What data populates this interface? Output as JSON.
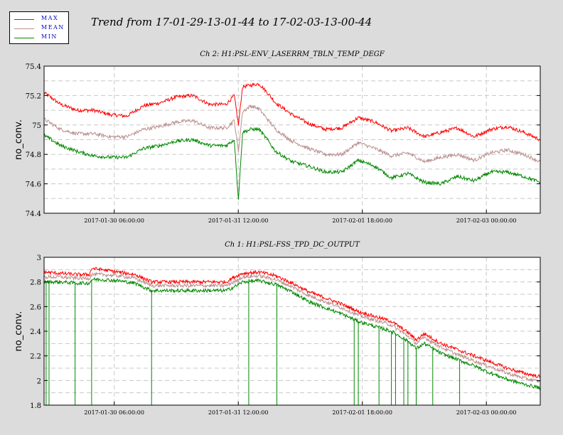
{
  "title": "Trend from 17-01-29-13-01-44 to 17-02-03-13-00-44",
  "legend": {
    "entries": [
      {
        "label": "MAX",
        "color": "#ff0000"
      },
      {
        "label": "MEAN",
        "color": "#bc8f8f"
      },
      {
        "label": "MIN",
        "color": "#008800"
      }
    ]
  },
  "chart_data": [
    {
      "type": "line",
      "title": "Ch 2: H1:PSL-ENV_LASERRM_TBLN_TEMP_DEGF",
      "ylabel": "no_conv.",
      "xlabel": "",
      "ylim": [
        74.4,
        75.4
      ],
      "yticks": [
        74.4,
        74.6,
        74.8,
        75,
        75.2,
        75.4
      ],
      "ytick_labels": [
        "74.4",
        "74.6",
        "74.8",
        "75",
        "75.2",
        "75.4"
      ],
      "xlim_hours": [
        0,
        120
      ],
      "xticks_hours": [
        16.97,
        46.97,
        76.97,
        106.97
      ],
      "xtick_labels": [
        "2017-01-30 06:00:00",
        "2017-01-31 12:00:00",
        "2017-02-01 18:00:00",
        "2017-02-03 00:00:00"
      ],
      "grid": true,
      "series": [
        {
          "name": "MAX",
          "color": "#ff0000",
          "x": [
            0,
            4,
            8,
            12,
            16,
            20,
            24,
            28,
            32,
            36,
            40,
            44,
            46,
            47,
            48,
            50,
            52,
            54,
            56,
            60,
            64,
            68,
            72,
            76,
            80,
            84,
            88,
            92,
            96,
            100,
            104,
            108,
            112,
            116,
            120
          ],
          "y": [
            75.22,
            75.14,
            75.1,
            75.1,
            75.07,
            75.06,
            75.13,
            75.15,
            75.19,
            75.2,
            75.14,
            75.14,
            75.2,
            75.0,
            75.26,
            75.27,
            75.28,
            75.22,
            75.15,
            75.07,
            75.01,
            74.97,
            74.98,
            75.05,
            75.02,
            74.96,
            74.98,
            74.92,
            74.95,
            74.98,
            74.92,
            74.97,
            74.99,
            74.95,
            74.9
          ]
        },
        {
          "name": "MEAN",
          "color": "#bc8f8f",
          "x": [
            0,
            4,
            8,
            12,
            16,
            20,
            24,
            28,
            32,
            36,
            40,
            44,
            46,
            47,
            48,
            50,
            52,
            54,
            56,
            60,
            64,
            68,
            72,
            76,
            80,
            84,
            88,
            92,
            96,
            100,
            104,
            108,
            112,
            116,
            120
          ],
          "y": [
            75.04,
            74.97,
            74.94,
            74.94,
            74.92,
            74.92,
            74.97,
            74.99,
            75.02,
            75.03,
            74.98,
            74.98,
            75.03,
            74.82,
            75.09,
            75.13,
            75.11,
            75.04,
            74.97,
            74.89,
            74.84,
            74.8,
            74.8,
            74.88,
            74.84,
            74.79,
            74.81,
            74.75,
            74.78,
            74.8,
            74.76,
            74.81,
            74.83,
            74.8,
            74.75
          ]
        },
        {
          "name": "MIN",
          "color": "#008800",
          "x": [
            0,
            4,
            8,
            12,
            16,
            20,
            24,
            28,
            32,
            36,
            40,
            44,
            46,
            47,
            48,
            50,
            52,
            54,
            56,
            60,
            64,
            68,
            72,
            76,
            80,
            84,
            88,
            92,
            96,
            100,
            104,
            108,
            112,
            116,
            120
          ],
          "y": [
            74.93,
            74.86,
            74.82,
            74.79,
            74.78,
            74.78,
            74.84,
            74.86,
            74.89,
            74.9,
            74.86,
            74.86,
            74.9,
            74.49,
            74.95,
            74.97,
            74.97,
            74.9,
            74.82,
            74.75,
            74.72,
            74.68,
            74.68,
            74.76,
            74.72,
            74.64,
            74.67,
            74.61,
            74.6,
            74.65,
            74.62,
            74.68,
            74.68,
            74.65,
            74.61
          ]
        }
      ]
    },
    {
      "type": "line",
      "title": "Ch 1: H1:PSL-FSS_TPD_DC_OUTPUT",
      "ylabel": "no_conv.",
      "xlabel": "",
      "ylim": [
        1.8,
        3.0
      ],
      "yticks": [
        1.8,
        2,
        2.2,
        2.4,
        2.6,
        2.8,
        3
      ],
      "ytick_labels": [
        "1.8",
        "2",
        "2.2",
        "2.4",
        "2.6",
        "2.8",
        "3"
      ],
      "xlim_hours": [
        0,
        120
      ],
      "xticks_hours": [
        16.97,
        46.97,
        76.97,
        106.97
      ],
      "xtick_labels": [
        "2017-01-30 06:00:00",
        "2017-01-31 12:00:00",
        "2017-02-01 18:00:00",
        "2017-02-03 00:00:00"
      ],
      "grid": true,
      "series": [
        {
          "name": "MAX",
          "color": "#ff0000",
          "x": [
            0,
            4,
            8,
            11,
            11.5,
            14,
            18,
            22,
            26,
            30,
            34,
            40,
            44,
            46,
            48,
            52,
            56,
            60,
            64,
            68,
            72,
            76,
            80,
            84,
            88,
            90,
            92,
            96,
            100,
            104,
            108,
            112,
            116,
            120
          ],
          "y": [
            2.88,
            2.87,
            2.86,
            2.86,
            2.91,
            2.9,
            2.88,
            2.86,
            2.8,
            2.8,
            2.8,
            2.8,
            2.8,
            2.84,
            2.87,
            2.88,
            2.85,
            2.79,
            2.72,
            2.67,
            2.62,
            2.56,
            2.52,
            2.48,
            2.39,
            2.33,
            2.38,
            2.3,
            2.25,
            2.2,
            2.15,
            2.1,
            2.06,
            2.03
          ]
        },
        {
          "name": "MEAN",
          "color": "#bc8f8f",
          "x": [
            0,
            4,
            8,
            11,
            11.5,
            14,
            18,
            22,
            26,
            30,
            34,
            40,
            44,
            46,
            48,
            52,
            56,
            60,
            64,
            68,
            72,
            76,
            80,
            84,
            88,
            90,
            92,
            96,
            100,
            104,
            108,
            112,
            116,
            120
          ],
          "y": [
            2.84,
            2.84,
            2.83,
            2.83,
            2.86,
            2.86,
            2.85,
            2.83,
            2.77,
            2.77,
            2.77,
            2.77,
            2.77,
            2.8,
            2.84,
            2.85,
            2.82,
            2.76,
            2.69,
            2.64,
            2.59,
            2.53,
            2.49,
            2.45,
            2.36,
            2.3,
            2.35,
            2.27,
            2.21,
            2.16,
            2.11,
            2.06,
            2.02,
            1.99
          ]
        },
        {
          "name": "MIN",
          "color": "#008800",
          "x": [
            0,
            4,
            8,
            11,
            11.5,
            14,
            18,
            22,
            26,
            30,
            34,
            40,
            44,
            46,
            48,
            52,
            56,
            60,
            64,
            68,
            72,
            76,
            80,
            84,
            88,
            90,
            92,
            96,
            100,
            104,
            108,
            112,
            116,
            120
          ],
          "y": [
            2.8,
            2.8,
            2.79,
            2.79,
            2.82,
            2.82,
            2.81,
            2.79,
            2.73,
            2.73,
            2.73,
            2.73,
            2.73,
            2.76,
            2.8,
            2.81,
            2.78,
            2.72,
            2.64,
            2.59,
            2.54,
            2.48,
            2.44,
            2.4,
            2.32,
            2.26,
            2.3,
            2.22,
            2.17,
            2.12,
            2.06,
            2.01,
            1.97,
            1.94
          ]
        }
      ]
    }
  ]
}
